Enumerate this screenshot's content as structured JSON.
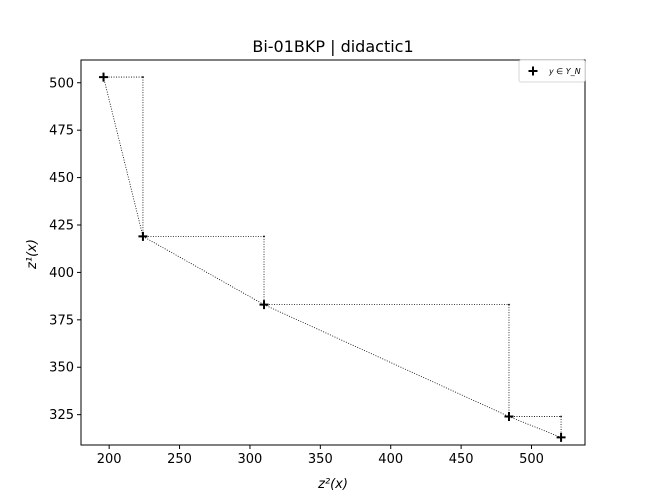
{
  "chart_data": {
    "type": "scatter",
    "title": "Bi-01BKP | didactic1",
    "xlabel": "z²(x)",
    "ylabel": "z¹(x)",
    "xlim": [
      180,
      538
    ],
    "ylim": [
      309,
      512
    ],
    "xticks": [
      200,
      250,
      300,
      350,
      400,
      450,
      500
    ],
    "yticks": [
      325,
      350,
      375,
      400,
      425,
      450,
      475,
      500
    ],
    "grid": false,
    "legend": {
      "label": "y ∈ Y_N",
      "position": "top-right"
    },
    "series": [
      {
        "name": "y ∈ Y_N",
        "marker": "plus",
        "points": [
          {
            "x": 196,
            "y": 503
          },
          {
            "x": 224,
            "y": 419
          },
          {
            "x": 310,
            "y": 383
          },
          {
            "x": 484,
            "y": 324
          },
          {
            "x": 521,
            "y": 313
          }
        ]
      }
    ],
    "staircase_corners": [
      {
        "x": 224,
        "y": 503
      },
      {
        "x": 310,
        "y": 419
      },
      {
        "x": 484,
        "y": 383
      },
      {
        "x": 521,
        "y": 324
      }
    ]
  }
}
